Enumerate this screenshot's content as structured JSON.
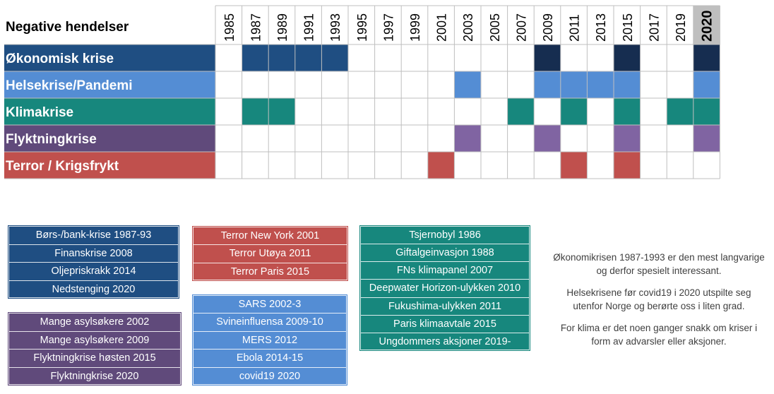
{
  "chart_data": {
    "type": "table",
    "header_label": "Negative hendelser",
    "years": [
      "1985",
      "1987",
      "1989",
      "1991",
      "1993",
      "1995",
      "1997",
      "1999",
      "2001",
      "2003",
      "2005",
      "2007",
      "2009",
      "2011",
      "2013",
      "2015",
      "2017",
      "2019",
      "2020"
    ],
    "highlight_year": "2020",
    "rows": [
      {
        "name": "Økonomisk krise",
        "color": "#1f4e82",
        "highlight_color": "#162d50",
        "filled": [
          0,
          1,
          1,
          1,
          1,
          0,
          0,
          0,
          0,
          0,
          0,
          0,
          1,
          0,
          0,
          1,
          0,
          0,
          1
        ],
        "strong": [
          0,
          0,
          0,
          0,
          0,
          0,
          0,
          0,
          0,
          0,
          0,
          0,
          1,
          0,
          0,
          1,
          0,
          0,
          1
        ]
      },
      {
        "name": "Helsekrise/Pandemi",
        "color": "#548dd4",
        "highlight_color": "#548dd4",
        "filled": [
          0,
          0,
          0,
          0,
          0,
          0,
          0,
          0,
          0,
          1,
          0,
          0,
          1,
          1,
          1,
          1,
          0,
          0,
          1
        ],
        "strong": [
          0,
          0,
          0,
          0,
          0,
          0,
          0,
          0,
          0,
          0,
          0,
          0,
          0,
          0,
          0,
          0,
          0,
          0,
          0
        ]
      },
      {
        "name": "Klimakrise",
        "color": "#17877d",
        "highlight_color": "#17877d",
        "filled": [
          0,
          1,
          1,
          0,
          0,
          0,
          0,
          0,
          0,
          0,
          0,
          1,
          0,
          1,
          0,
          1,
          0,
          1,
          1
        ],
        "strong": [
          0,
          0,
          0,
          0,
          0,
          0,
          0,
          0,
          0,
          0,
          0,
          0,
          0,
          0,
          0,
          0,
          0,
          0,
          0
        ]
      },
      {
        "name": "Flyktningkrise",
        "color": "#604a7b",
        "highlight_color": "#8064a2",
        "filled": [
          0,
          0,
          0,
          0,
          0,
          0,
          0,
          0,
          0,
          1,
          0,
          0,
          1,
          0,
          0,
          1,
          0,
          0,
          1
        ],
        "strong": [
          0,
          0,
          0,
          0,
          0,
          0,
          0,
          0,
          0,
          1,
          0,
          0,
          1,
          0,
          0,
          1,
          0,
          0,
          1
        ]
      },
      {
        "name": "Terror / Krigsfrykt",
        "color": "#c0504d",
        "highlight_color": "#c0504d",
        "filled": [
          0,
          0,
          0,
          0,
          0,
          0,
          0,
          0,
          1,
          0,
          0,
          0,
          0,
          1,
          0,
          1,
          0,
          0,
          0
        ],
        "strong": [
          0,
          0,
          0,
          0,
          0,
          0,
          0,
          0,
          0,
          0,
          0,
          0,
          0,
          0,
          0,
          0,
          0,
          0,
          0
        ]
      }
    ]
  },
  "legends": {
    "okonomi": {
      "color": "#1f4e82",
      "items": [
        "Børs-/bank-krise 1987-93",
        "Finanskrise 2008",
        "Oljepriskrakk 2014",
        "Nedstenging 2020"
      ]
    },
    "flyktning": {
      "color": "#604a7b",
      "items": [
        "Mange asylsøkere 2002",
        "Mange asylsøkere 2009",
        "Flyktningkrise høsten 2015",
        "Flyktningkrise 2020"
      ]
    },
    "terror": {
      "color": "#c0504d",
      "items": [
        "Terror New York 2001",
        "Terror Utøya 2011",
        "Terror Paris 2015"
      ]
    },
    "helse": {
      "color": "#548dd4",
      "items": [
        "SARS 2002-3",
        "Svineinfluensa 2009-10",
        "MERS 2012",
        "Ebola 2014-15",
        "covid19 2020"
      ]
    },
    "klima": {
      "color": "#17877d",
      "items": [
        "Tsjernobyl 1986",
        "Giftalgeinvasjon 1988",
        "FNs klimapanel 2007",
        "Deepwater Horizon-ulykken 2010",
        "Fukushima-ulykken 2011",
        "Paris klimaavtale 2015",
        "Ungdommers aksjoner 2019-"
      ]
    }
  },
  "notes": {
    "p1": "Økonomikrisen 1987-1993 er den mest langvarige og derfor spesielt interessant.",
    "p2": "Helsekrisene før covid19 i 2020 utspilte seg utenfor Norge og berørte oss i liten grad.",
    "p3": "For klima er det noen ganger snakk om kriser i form av advarsler eller aksjoner."
  }
}
